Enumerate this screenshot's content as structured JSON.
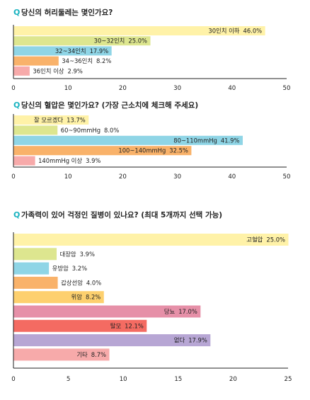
{
  "chart_data": [
    {
      "type": "bar",
      "orientation": "horizontal",
      "q_mark": "Q",
      "title": "당신의 허리둘레는 몇인가요?",
      "categories": [
        "30인치 이하",
        "30~32인치",
        "32~34인치",
        "34~36인치",
        "36인치 이상"
      ],
      "values": [
        46.0,
        25.0,
        17.9,
        8.2,
        2.9
      ],
      "value_labels": [
        "46.0%",
        "25.0%",
        "17.9%",
        "8.2%",
        "2.9%"
      ],
      "colors": [
        "#fff2a8",
        "#dde68f",
        "#8fd5e6",
        "#f9b26a",
        "#f7aaaa"
      ],
      "xlim": [
        0,
        50
      ],
      "xticks": [
        "0",
        "10",
        "20",
        "30",
        "40",
        "50"
      ]
    },
    {
      "type": "bar",
      "orientation": "horizontal",
      "q_mark": "Q",
      "title": "당신의 혈압은 몇인가요? (가장 근소치에 체크해 주세요)",
      "categories": [
        "잘 모르겠다",
        "60~90mmHg",
        "80~110mmHg",
        "100~140mmHg",
        "140mmHg 이상"
      ],
      "values": [
        13.7,
        8.0,
        41.9,
        32.5,
        3.9
      ],
      "value_labels": [
        "13.7%",
        "8.0%",
        "41.9%",
        "32.5%",
        "3.9%"
      ],
      "colors": [
        "#fff2a8",
        "#dde68f",
        "#8fd5e6",
        "#f9b26a",
        "#f7aaaa"
      ],
      "xlim": [
        0,
        50
      ],
      "xticks": [
        "0",
        "10",
        "20",
        "30",
        "40",
        "50"
      ]
    },
    {
      "type": "bar",
      "orientation": "horizontal",
      "q_mark": "Q",
      "title": "가족력이 있어 걱정인 질병이 있나요? (최대 5개까지 선택 가능)",
      "categories": [
        "고혈압",
        "대장암",
        "유방암",
        "갑상선암",
        "위암",
        "당뇨",
        "탈모",
        "없다",
        "기타"
      ],
      "values": [
        25.0,
        3.9,
        3.2,
        4.0,
        8.2,
        17.0,
        12.1,
        17.9,
        8.7
      ],
      "value_labels": [
        "25.0%",
        "3.9%",
        "3.2%",
        "4.0%",
        "8.2%",
        "17.0%",
        "12.1%",
        "17.9%",
        "8.7%"
      ],
      "colors": [
        "#fff2a8",
        "#dde68f",
        "#8fd5e6",
        "#f9b26a",
        "#fdd06e",
        "#e690a8",
        "#f46b62",
        "#b7a6d4",
        "#f7aaaa"
      ],
      "xlim": [
        0,
        25
      ],
      "xticks": [
        "0",
        "5",
        "10",
        "15",
        "20",
        "25"
      ]
    }
  ]
}
